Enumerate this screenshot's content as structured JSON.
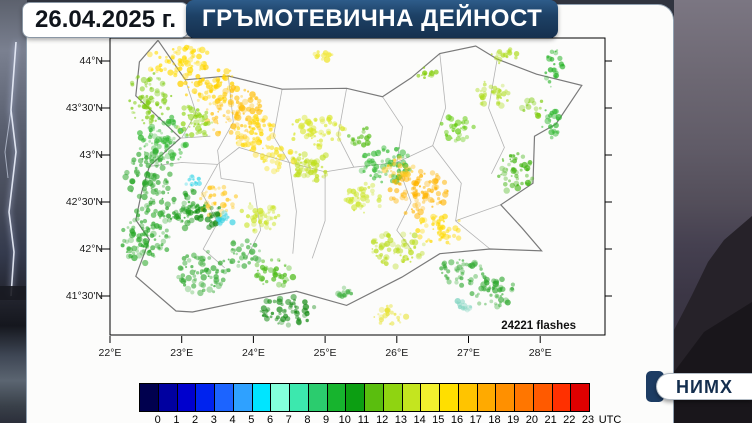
{
  "header": {
    "date": "26.04.2025 г.",
    "title": "ГРЪМОТЕВИЧНА ДЕЙНОСТ"
  },
  "logo": {
    "text": "НИМХ"
  },
  "colors": {
    "navy_accent": "#1D3C63",
    "title_top": "#2E5C8A",
    "title_bottom": "#16304E",
    "map_frame": "#000000",
    "district_line": "#B3B3B3",
    "country_border": "#7A7A7A"
  },
  "map": {
    "flashes_label": "24221 flashes",
    "lat_labels": [
      "44°N",
      "43°30'N",
      "43°N",
      "42°30'N",
      "42°N",
      "41°30'N"
    ],
    "lon_labels": [
      "22°E",
      "23°E",
      "24°E",
      "25°E",
      "26°E",
      "27°E",
      "28°E"
    ],
    "border": [
      [
        22.67,
        44.22
      ],
      [
        23.05,
        43.8
      ],
      [
        23.65,
        43.84
      ],
      [
        24.4,
        43.7
      ],
      [
        25.3,
        43.71
      ],
      [
        25.8,
        43.62
      ],
      [
        26.2,
        43.82
      ],
      [
        26.6,
        44.08
      ],
      [
        27.1,
        44.16
      ],
      [
        27.4,
        44.02
      ],
      [
        27.95,
        43.86
      ],
      [
        28.58,
        43.74
      ],
      [
        28.22,
        43.33
      ],
      [
        27.92,
        43.2
      ],
      [
        27.9,
        42.7
      ],
      [
        27.45,
        42.47
      ],
      [
        27.75,
        42.22
      ],
      [
        28.02,
        41.98
      ],
      [
        27.3,
        42.0
      ],
      [
        26.6,
        41.95
      ],
      [
        26.07,
        41.7
      ],
      [
        25.3,
        41.4
      ],
      [
        24.6,
        41.55
      ],
      [
        23.9,
        41.45
      ],
      [
        23.15,
        41.33
      ],
      [
        22.92,
        41.34
      ],
      [
        22.36,
        41.71
      ],
      [
        22.55,
        42.1
      ],
      [
        22.36,
        42.31
      ],
      [
        22.44,
        42.6
      ],
      [
        22.55,
        42.88
      ],
      [
        22.98,
        43.18
      ],
      [
        22.36,
        43.63
      ],
      [
        22.41,
        43.99
      ],
      [
        22.67,
        44.22
      ]
    ],
    "district_lines": [
      [
        [
          23.05,
          43.8
        ],
        [
          23.2,
          43.45
        ],
        [
          23.0,
          43.18
        ]
      ],
      [
        [
          23.65,
          43.84
        ],
        [
          23.72,
          43.35
        ],
        [
          23.5,
          43.05
        ],
        [
          23.55,
          42.75
        ]
      ],
      [
        [
          24.4,
          43.7
        ],
        [
          24.28,
          43.2
        ],
        [
          24.5,
          42.92
        ]
      ],
      [
        [
          25.3,
          43.71
        ],
        [
          25.18,
          43.2
        ],
        [
          25.4,
          42.87
        ]
      ],
      [
        [
          25.8,
          43.62
        ],
        [
          26.08,
          43.3
        ],
        [
          26.0,
          42.92
        ]
      ],
      [
        [
          26.6,
          44.08
        ],
        [
          26.68,
          43.5
        ],
        [
          26.5,
          43.1
        ]
      ],
      [
        [
          27.4,
          44.02
        ],
        [
          27.28,
          43.5
        ],
        [
          27.5,
          43.08
        ],
        [
          27.32,
          42.8
        ]
      ],
      [
        [
          22.55,
          42.88
        ],
        [
          23.0,
          42.92
        ],
        [
          23.5,
          42.9
        ],
        [
          23.8,
          43.08
        ],
        [
          24.5,
          42.92
        ],
        [
          25.0,
          42.82
        ],
        [
          25.4,
          42.87
        ],
        [
          26.0,
          42.92
        ],
        [
          26.5,
          43.1
        ]
      ],
      [
        [
          23.5,
          42.9
        ],
        [
          23.28,
          42.6
        ],
        [
          23.5,
          42.28
        ],
        [
          23.3,
          42.0
        ],
        [
          23.6,
          41.8
        ]
      ],
      [
        [
          24.0,
          42.7
        ],
        [
          24.1,
          42.2
        ],
        [
          23.9,
          41.9
        ]
      ],
      [
        [
          25.0,
          42.82
        ],
        [
          25.0,
          42.3
        ],
        [
          24.82,
          41.9
        ]
      ],
      [
        [
          26.0,
          42.92
        ],
        [
          26.2,
          42.5
        ],
        [
          26.0,
          42.2
        ],
        [
          26.2,
          42.0
        ]
      ],
      [
        [
          26.5,
          43.1
        ],
        [
          26.9,
          42.7
        ],
        [
          26.82,
          42.3
        ],
        [
          27.3,
          42.0
        ]
      ],
      [
        [
          22.98,
          43.18
        ],
        [
          23.4,
          43.2
        ]
      ],
      [
        [
          24.5,
          42.92
        ],
        [
          24.6,
          42.4
        ],
        [
          24.55,
          41.95
        ]
      ],
      [
        [
          26.82,
          42.3
        ],
        [
          27.45,
          42.47
        ]
      ],
      [
        [
          23.55,
          42.75
        ],
        [
          24.0,
          42.7
        ]
      ]
    ],
    "cluster_format": [
      "lon",
      "lat",
      "rx_px",
      "ry_px",
      "color"
    ],
    "clusters": [
      [
        22.95,
        44.0,
        34,
        16,
        "#FFDB00"
      ],
      [
        23.4,
        43.75,
        30,
        20,
        "#FFD200"
      ],
      [
        23.75,
        43.45,
        30,
        26,
        "#FFC00E"
      ],
      [
        24.05,
        43.2,
        22,
        20,
        "#FFD700"
      ],
      [
        24.35,
        42.95,
        18,
        14,
        "#F5E32A"
      ],
      [
        22.55,
        43.6,
        22,
        26,
        "#7FCC11"
      ],
      [
        22.75,
        43.15,
        26,
        26,
        "#33B833"
      ],
      [
        23.2,
        43.35,
        20,
        18,
        "#8FD411"
      ],
      [
        22.55,
        42.75,
        24,
        28,
        "#2FA82F"
      ],
      [
        22.5,
        42.15,
        26,
        30,
        "#28A828"
      ],
      [
        23.05,
        42.45,
        22,
        22,
        "#1E9E1E"
      ],
      [
        23.5,
        42.5,
        20,
        16,
        "#FFC81E"
      ],
      [
        23.4,
        42.35,
        14,
        12,
        "#128A12"
      ],
      [
        23.15,
        42.72,
        8,
        6,
        "#35D6E8"
      ],
      [
        23.62,
        42.32,
        9,
        7,
        "#2FD0E0"
      ],
      [
        23.3,
        41.75,
        26,
        22,
        "#2FA82F"
      ],
      [
        23.85,
        41.95,
        18,
        14,
        "#3FAF3F"
      ],
      [
        24.45,
        41.35,
        30,
        16,
        "#128A12"
      ],
      [
        24.3,
        41.75,
        22,
        14,
        "#4CBB17"
      ],
      [
        24.1,
        42.35,
        20,
        16,
        "#CCE52E"
      ],
      [
        24.75,
        42.9,
        24,
        18,
        "#BFDF1C"
      ],
      [
        24.9,
        43.25,
        30,
        16,
        "#D8E626"
      ],
      [
        25.5,
        43.2,
        14,
        10,
        "#57BE17"
      ],
      [
        25.85,
        42.9,
        26,
        20,
        "#2EB82E"
      ],
      [
        25.55,
        42.55,
        20,
        16,
        "#CCE52E"
      ],
      [
        26.3,
        42.6,
        30,
        24,
        "#FFB400"
      ],
      [
        26.05,
        42.85,
        16,
        12,
        "#FFC81E"
      ],
      [
        26.6,
        42.2,
        24,
        16,
        "#FFD900"
      ],
      [
        26.0,
        42.0,
        28,
        18,
        "#BBDD22"
      ],
      [
        25.9,
        41.3,
        18,
        10,
        "#E8E337"
      ],
      [
        26.9,
        41.75,
        22,
        16,
        "#33AA33"
      ],
      [
        27.35,
        41.55,
        24,
        16,
        "#2FA82F"
      ],
      [
        27.65,
        42.8,
        18,
        22,
        "#45B515"
      ],
      [
        26.85,
        43.3,
        18,
        14,
        "#66CC11"
      ],
      [
        27.35,
        43.65,
        18,
        14,
        "#AEDC1E"
      ],
      [
        27.5,
        44.05,
        16,
        8,
        "#AEDC1E"
      ],
      [
        28.2,
        43.9,
        9,
        22,
        "#2DB52D"
      ],
      [
        28.15,
        43.35,
        10,
        16,
        "#33B833"
      ],
      [
        27.9,
        43.5,
        12,
        10,
        "#7FCC11"
      ],
      [
        25.0,
        44.05,
        12,
        6,
        "#F0E62E"
      ],
      [
        26.4,
        43.85,
        12,
        8,
        "#7FCC00"
      ],
      [
        26.9,
        41.4,
        10,
        6,
        "#7FD4C0"
      ],
      [
        25.3,
        41.55,
        12,
        8,
        "#3FAF3F"
      ]
    ]
  },
  "colorbar": {
    "hours": [
      "0",
      "1",
      "2",
      "3",
      "4",
      "5",
      "6",
      "7",
      "8",
      "9",
      "10",
      "11",
      "12",
      "13",
      "14",
      "15",
      "16",
      "17",
      "18",
      "19",
      "20",
      "21",
      "22",
      "23"
    ],
    "unit": "UTC",
    "colors": [
      "#00004E",
      "#0000A0",
      "#0000CD",
      "#0023EE",
      "#1C64FF",
      "#2FA1FF",
      "#00E5FF",
      "#83FFDB",
      "#3CE8AE",
      "#2BCC6E",
      "#17B42E",
      "#0C9E12",
      "#5ABE0E",
      "#8FD411",
      "#C4E51F",
      "#F2F02E",
      "#FFDF00",
      "#FFC400",
      "#FFAA00",
      "#FF9000",
      "#FF7600",
      "#FF5A00",
      "#FF3000",
      "#DE0000"
    ]
  }
}
